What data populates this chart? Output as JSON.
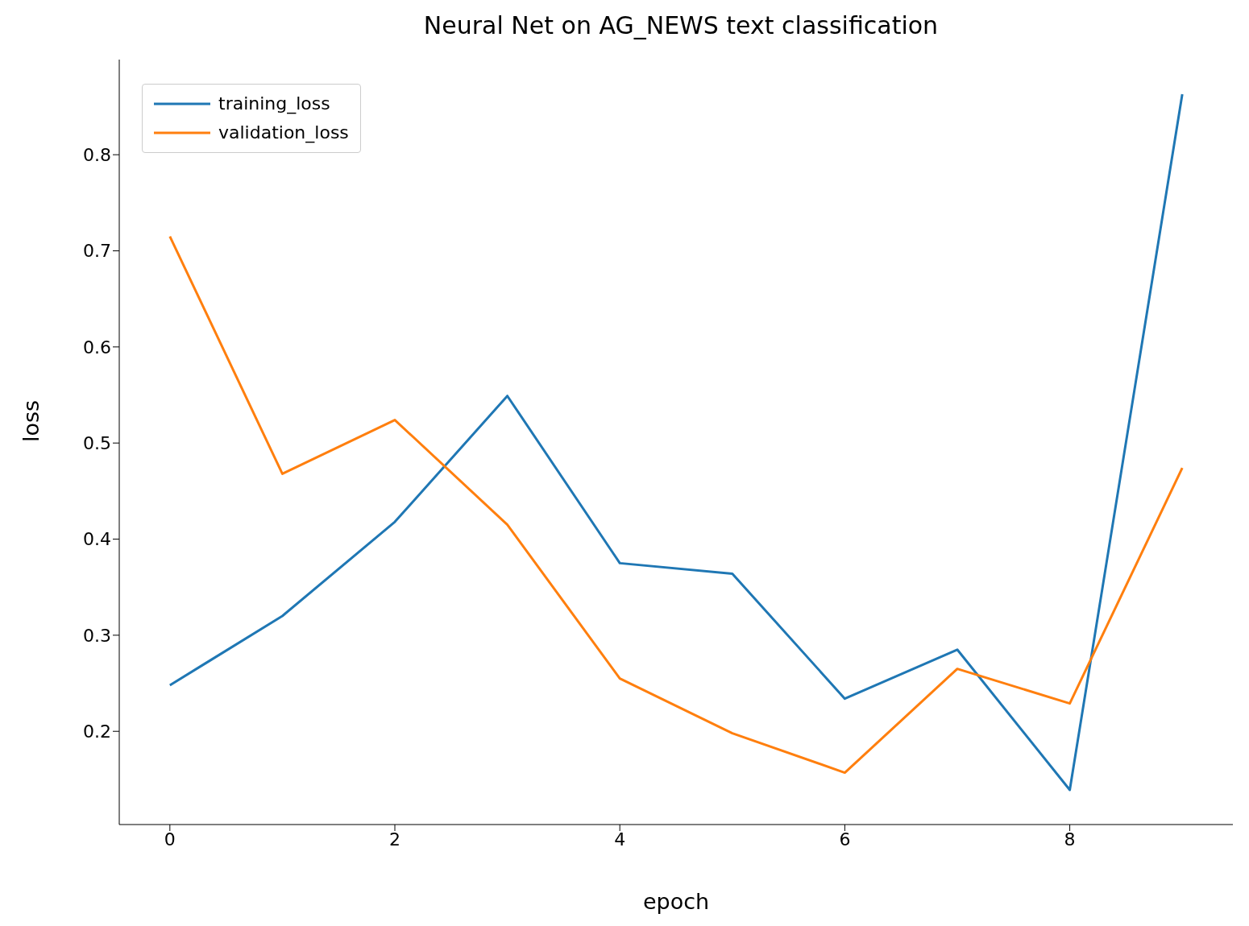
{
  "chart_data": {
    "type": "line",
    "title": "Neural Net on AG_NEWS text classification",
    "xlabel": "epoch",
    "ylabel": "loss",
    "x": [
      0,
      1,
      2,
      3,
      4,
      5,
      6,
      7,
      8,
      9
    ],
    "series": [
      {
        "name": "training_loss",
        "color": "#1f77b4",
        "values": [
          0.248,
          0.32,
          0.418,
          0.549,
          0.375,
          0.364,
          0.234,
          0.285,
          0.139,
          0.863
        ]
      },
      {
        "name": "validation_loss",
        "color": "#ff7f0e",
        "values": [
          0.715,
          0.468,
          0.524,
          0.415,
          0.255,
          0.198,
          0.157,
          0.265,
          0.229,
          0.474
        ]
      }
    ],
    "xlim": [
      -0.45,
      9.45
    ],
    "xticks": [
      0,
      2,
      4,
      6,
      8
    ],
    "ylim": [
      0.103,
      0.899
    ],
    "yticks": [
      0.2,
      0.3,
      0.4,
      0.5,
      0.6,
      0.7,
      0.8
    ],
    "grid": false,
    "legend": "top left",
    "marker": "none",
    "line_style": "solid"
  }
}
